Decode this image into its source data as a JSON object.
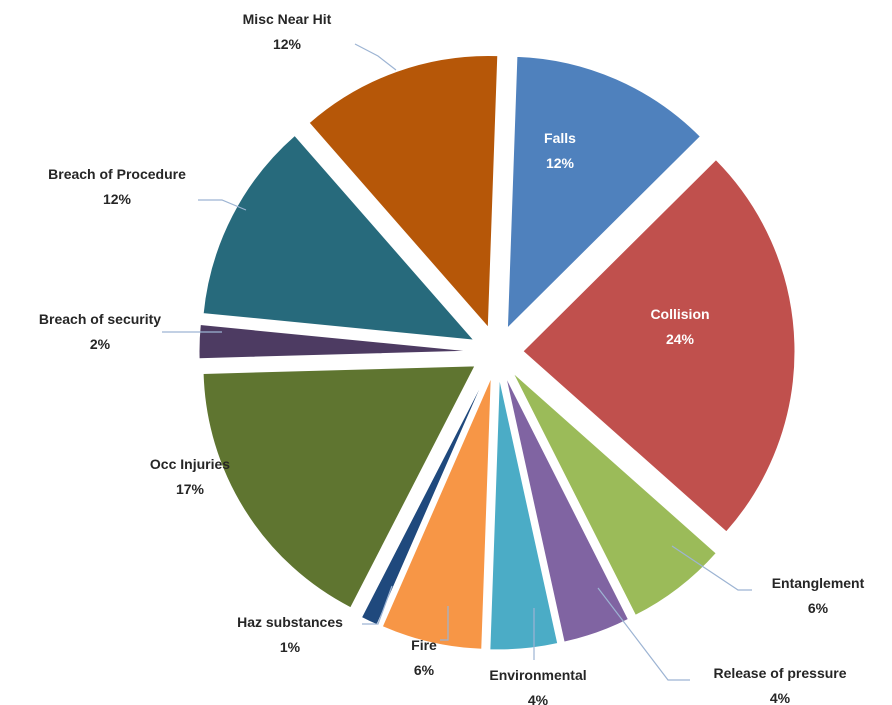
{
  "chart_data": {
    "type": "pie",
    "title": "",
    "grid": false,
    "legend": "none",
    "slices": [
      {
        "name": "Falls",
        "value": 12,
        "label": "12%",
        "color": "#4f81bd",
        "label_position": "inside"
      },
      {
        "name": "Collision",
        "value": 24,
        "label": "24%",
        "color": "#c0504d",
        "label_position": "inside"
      },
      {
        "name": "Entanglement",
        "value": 6,
        "label": "6%",
        "color": "#9bbb59",
        "label_position": "outside"
      },
      {
        "name": "Release of pressure",
        "value": 4,
        "label": "4%",
        "color": "#8064a2",
        "label_position": "outside"
      },
      {
        "name": "Environmental",
        "value": 4,
        "label": "4%",
        "color": "#4bacc6",
        "label_position": "outside"
      },
      {
        "name": "Fire",
        "value": 6,
        "label": "6%",
        "color": "#f79646",
        "label_position": "outside"
      },
      {
        "name": "Haz substances",
        "value": 1,
        "label": "1%",
        "color": "#1f497d",
        "label_position": "outside"
      },
      {
        "name": "Occ Injuries",
        "value": 17,
        "label": "17%",
        "color": "#5f7530",
        "label_position": "outside"
      },
      {
        "name": "Breach of security",
        "value": 2,
        "label": "2%",
        "color": "#4d3b62",
        "label_position": "outside"
      },
      {
        "name": "Breach of Procedure",
        "value": 12,
        "label": "12%",
        "color": "#276a7c",
        "label_position": "outside"
      },
      {
        "name": "Misc Near Hit",
        "value": 12,
        "label": "12%",
        "color": "#b65708",
        "label_position": "outside"
      }
    ]
  }
}
